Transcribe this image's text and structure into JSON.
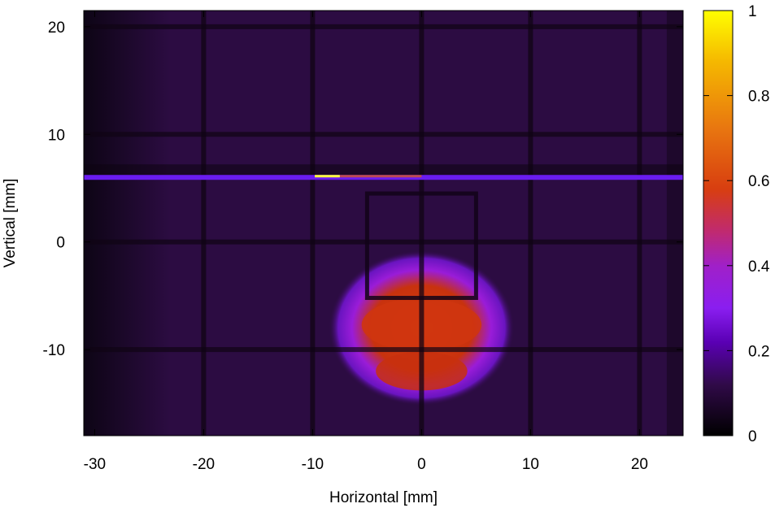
{
  "chart_data": {
    "type": "heatmap",
    "title": "",
    "xlabel": "Horizontal [mm]",
    "ylabel": "Vertical [mm]",
    "xlim": [
      -31,
      24
    ],
    "ylim": [
      -18,
      21.5
    ],
    "x_ticks": [
      -30,
      -20,
      -10,
      0,
      10,
      20
    ],
    "y_ticks": [
      -10,
      0,
      10,
      20
    ],
    "colorbar": {
      "range": [
        0,
        1
      ],
      "ticks": [
        0,
        0.2,
        0.4,
        0.6,
        0.8,
        1
      ],
      "tick_labels": [
        "0",
        "0.2",
        "0.4",
        "0.6",
        "0.8",
        "1"
      ],
      "palette": [
        "#000000",
        "#2a0a3a",
        "#5a00b4",
        "#8a1ef0",
        "#a020c8",
        "#c02a70",
        "#d83e10",
        "#e87510",
        "#f5b800",
        "#ffff00"
      ]
    },
    "features": {
      "grid_lines_x": [
        -20,
        -10,
        0,
        10,
        20
      ],
      "grid_lines_y": [
        -10,
        0,
        10,
        20
      ],
      "bright_horizontal_band_y": 6,
      "hot_region": {
        "center": [
          0,
          -8
        ],
        "half_width": 5,
        "half_height": 4.5,
        "peak_value": 0.55
      },
      "frame": {
        "x": [
          -5,
          5
        ],
        "y": [
          -5.2,
          4.5
        ]
      }
    }
  }
}
